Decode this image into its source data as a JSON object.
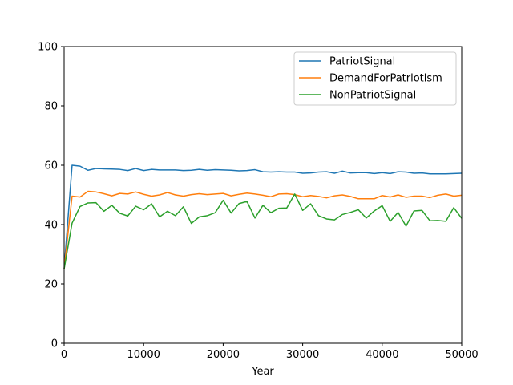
{
  "chart_data": {
    "type": "line",
    "title": "",
    "xlabel": "Year",
    "ylabel": "",
    "xlim": [
      0,
      50000
    ],
    "ylim": [
      0,
      100
    ],
    "xticks": [
      0,
      10000,
      20000,
      30000,
      40000,
      50000
    ],
    "yticks": [
      0,
      20,
      40,
      60,
      80,
      100
    ],
    "grid": false,
    "legend_position": "top-right",
    "x": [
      0,
      1000,
      2000,
      3000,
      4000,
      5000,
      6000,
      7000,
      8000,
      9000,
      10000,
      11000,
      12000,
      13000,
      14000,
      15000,
      16000,
      17000,
      18000,
      19000,
      20000,
      21000,
      22000,
      23000,
      24000,
      25000,
      26000,
      27000,
      28000,
      29000,
      30000,
      31000,
      32000,
      33000,
      34000,
      35000,
      36000,
      37000,
      38000,
      39000,
      40000,
      41000,
      42000,
      43000,
      44000,
      45000,
      46000,
      47000,
      48000,
      49000,
      50000
    ],
    "series": [
      {
        "name": "PatriotSignal",
        "color": "#1f77b4",
        "values": [
          25,
          60,
          59.7,
          58.3,
          58.9,
          58.8,
          58.7,
          58.6,
          58.2,
          58.9,
          58.2,
          58.6,
          58.4,
          58.4,
          58.4,
          58.2,
          58.3,
          58.6,
          58.3,
          58.5,
          58.4,
          58.3,
          58.1,
          58.2,
          58.5,
          57.8,
          57.7,
          57.8,
          57.7,
          57.7,
          57.3,
          57.4,
          57.7,
          57.8,
          57.3,
          58.0,
          57.4,
          57.5,
          57.5,
          57.2,
          57.5,
          57.2,
          57.8,
          57.7,
          57.3,
          57.4,
          57.1,
          57.1,
          57.1,
          57.2,
          57.3
        ]
      },
      {
        "name": "DemandForPatriotism",
        "color": "#ff7f0e",
        "values": [
          25,
          49.6,
          49.3,
          51.2,
          51.0,
          50.4,
          49.7,
          50.5,
          50.3,
          51.0,
          50.2,
          49.6,
          50.0,
          50.8,
          50.0,
          49.6,
          50.1,
          50.4,
          50.1,
          50.3,
          50.5,
          49.7,
          50.2,
          50.6,
          50.3,
          49.9,
          49.4,
          50.3,
          50.4,
          50.1,
          49.4,
          49.8,
          49.5,
          49.0,
          49.7,
          50.0,
          49.5,
          48.7,
          48.7,
          48.7,
          49.8,
          49.3,
          50.0,
          49.2,
          49.6,
          49.6,
          49.1,
          49.9,
          50.3,
          49.6,
          49.9
        ]
      },
      {
        "name": "NonPatriotSignal",
        "color": "#2ca02c",
        "values": [
          25,
          40.5,
          46.1,
          47.3,
          47.4,
          44.5,
          46.5,
          43.8,
          42.9,
          46.2,
          45.0,
          47.0,
          42.6,
          44.5,
          43.0,
          46.0,
          40.4,
          42.6,
          43.0,
          44.0,
          48.2,
          43.9,
          47.1,
          47.8,
          42.2,
          46.5,
          44.0,
          45.5,
          45.6,
          50.3,
          44.8,
          47.0,
          43.0,
          41.9,
          41.6,
          43.4,
          44.1,
          45.0,
          42.2,
          44.6,
          46.4,
          41.1,
          44.1,
          39.5,
          44.6,
          44.8,
          41.3,
          41.4,
          41.1,
          45.7,
          42.1
        ]
      }
    ]
  }
}
